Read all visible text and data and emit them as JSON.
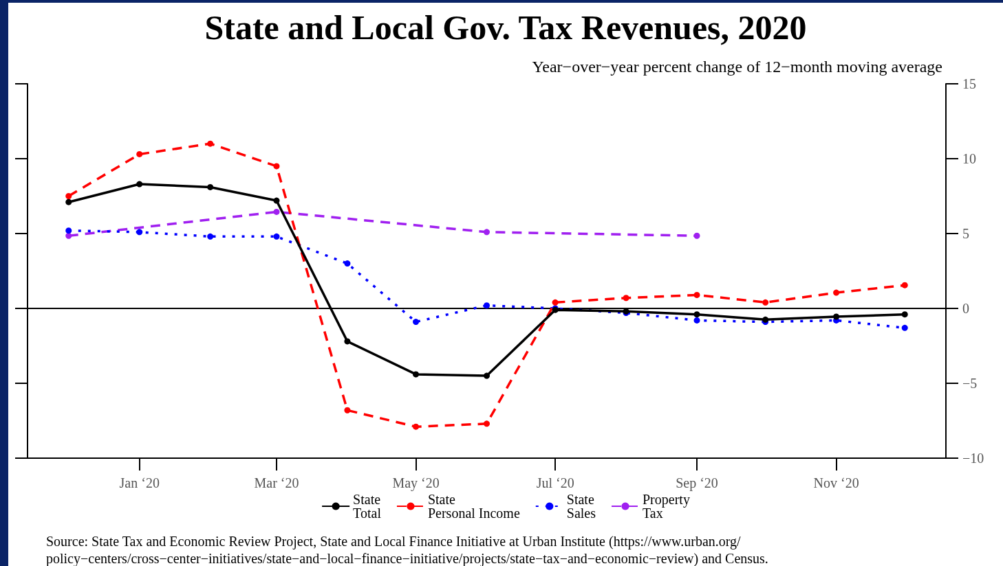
{
  "chart_data": {
    "type": "line",
    "title": "State and Local Gov. Tax Revenues, 2020",
    "subtitle": "Year−over−year percent change of 12−month moving average",
    "x": [
      "2019-12",
      "2020-01",
      "2020-02",
      "2020-03",
      "2020-04",
      "2020-05",
      "2020-06",
      "2020-07",
      "2020-08",
      "2020-09",
      "2020-10",
      "2020-11",
      "2020-12"
    ],
    "xlim": [
      "2019-11-13",
      "2020-12-19"
    ],
    "xticks": [
      {
        "value": "2020-01",
        "label": "Jan ‘20"
      },
      {
        "value": "2020-03",
        "label": "Mar ‘20"
      },
      {
        "value": "2020-05",
        "label": "May ‘20"
      },
      {
        "value": "2020-07",
        "label": "Jul ‘20"
      },
      {
        "value": "2020-09",
        "label": "Sep ‘20"
      },
      {
        "value": "2020-11",
        "label": "Nov ‘20"
      }
    ],
    "ylim": [
      -10,
      15
    ],
    "yticks": [
      -10,
      -5,
      0,
      5,
      10,
      15
    ],
    "series": [
      {
        "name": "State\nTotal",
        "color": "#000000",
        "line_style": "solid",
        "values": [
          7.1,
          8.3,
          8.1,
          7.2,
          -2.2,
          -4.4,
          -4.5,
          -0.1,
          -0.2,
          -0.4,
          -0.75,
          -0.55,
          -0.4
        ]
      },
      {
        "name": "State\nPersonal Income",
        "color": "#ff0000",
        "line_style": "dashed",
        "values": [
          7.5,
          10.3,
          11.0,
          9.5,
          -6.8,
          -7.9,
          -7.7,
          0.4,
          0.7,
          0.9,
          0.4,
          1.05,
          1.55
        ]
      },
      {
        "name": "State\nSales",
        "color": "#0000ff",
        "line_style": "dotted",
        "values": [
          5.2,
          5.1,
          4.8,
          4.8,
          3.0,
          -0.9,
          0.2,
          0.0,
          -0.3,
          -0.8,
          -0.9,
          -0.8,
          -1.3
        ]
      },
      {
        "name": "Property\nTax",
        "color": "#a020f0",
        "line_style": "dashed",
        "x": [
          "2019-12",
          "2020-03",
          "2020-06",
          "2020-09"
        ],
        "values": [
          4.85,
          6.45,
          5.1,
          4.85
        ]
      }
    ],
    "ref_lines": [
      {
        "axis": "y",
        "value": 0,
        "color": "#000000"
      }
    ],
    "marker": "circle",
    "grid": false,
    "legend": "bottom",
    "annotations": [
      "Source: State Tax and Economic Review Project, State and Local Finance Initiative at Urban Institute (https://www.urban.org/\npolicy−centers/cross−center−initiatives/state−and−local−finance−initiative/projects/state−tax−and−economic−review) and Census."
    ]
  }
}
